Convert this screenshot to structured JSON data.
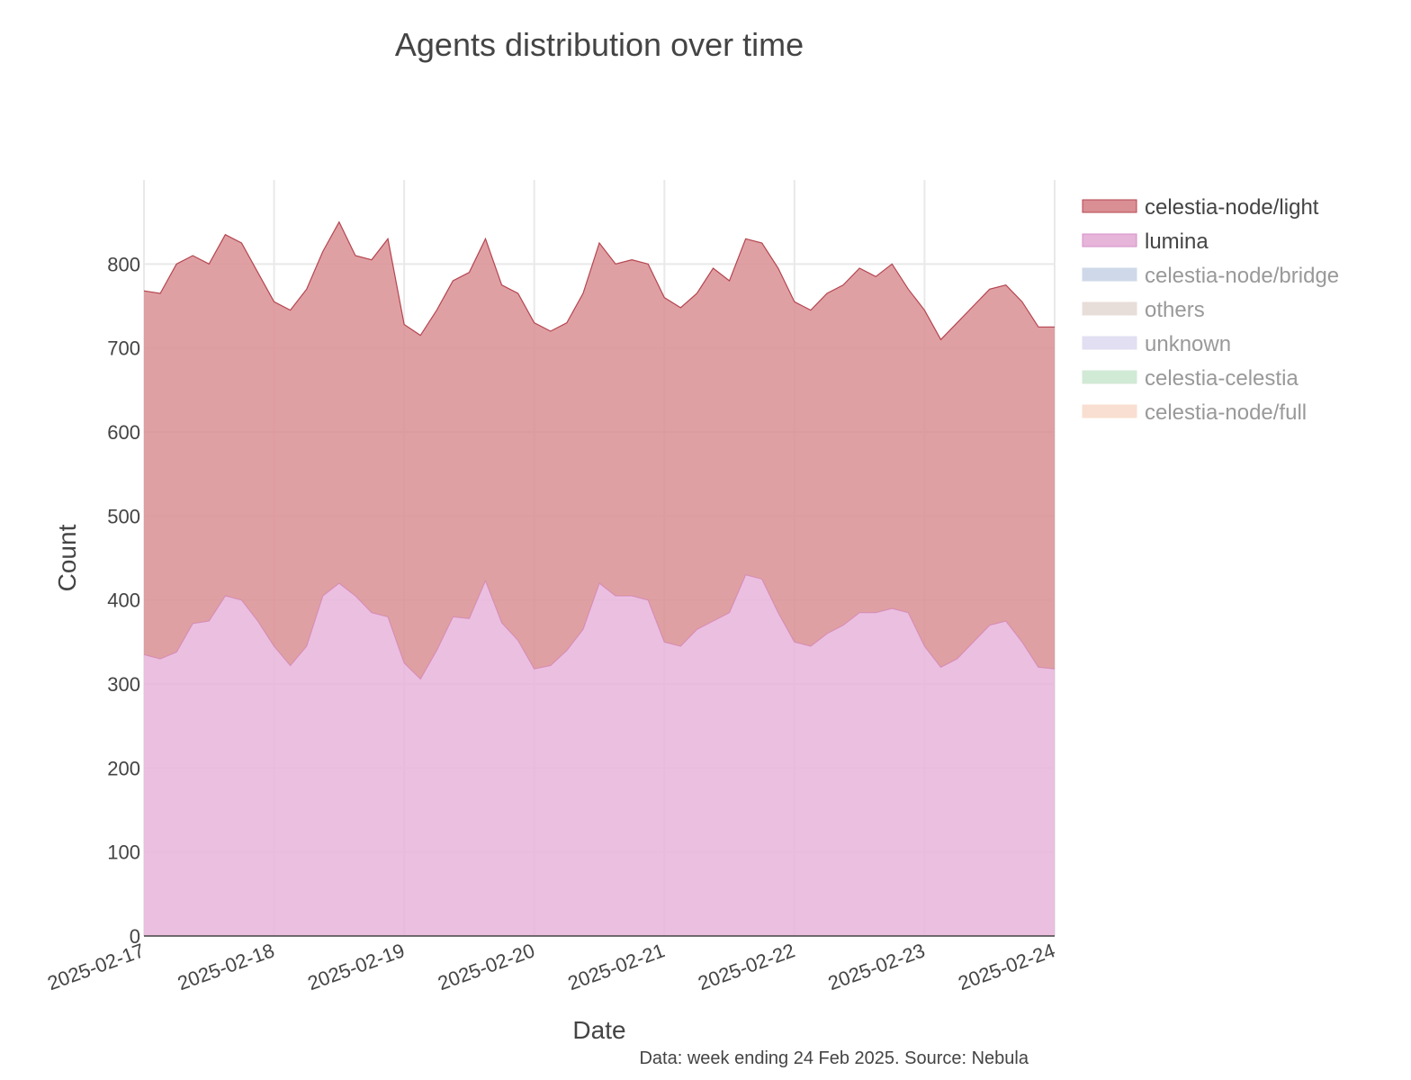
{
  "chart_data": {
    "type": "area",
    "stacked": true,
    "title": "Agents distribution over time",
    "xlabel": "Date",
    "ylabel": "Count",
    "xlim": [
      "2025-02-17",
      "2025-02-24"
    ],
    "ylim": [
      0,
      900
    ],
    "x_ticks": [
      "2025-02-17",
      "2025-02-18",
      "2025-02-19",
      "2025-02-20",
      "2025-02-21",
      "2025-02-22",
      "2025-02-23",
      "2025-02-24"
    ],
    "y_ticks": [
      "0",
      "100",
      "200",
      "300",
      "400",
      "500",
      "600",
      "700",
      "800"
    ],
    "grid": true,
    "legend_position": "top-right",
    "annotation": "Data: week ending 24 Feb 2025. Source: Nebula",
    "x": [
      "2025-02-17 00:00",
      "2025-02-17 03:00",
      "2025-02-17 06:00",
      "2025-02-17 09:00",
      "2025-02-17 12:00",
      "2025-02-17 15:00",
      "2025-02-17 18:00",
      "2025-02-17 21:00",
      "2025-02-18 00:00",
      "2025-02-18 03:00",
      "2025-02-18 06:00",
      "2025-02-18 09:00",
      "2025-02-18 12:00",
      "2025-02-18 15:00",
      "2025-02-18 18:00",
      "2025-02-18 21:00",
      "2025-02-19 00:00",
      "2025-02-19 03:00",
      "2025-02-19 06:00",
      "2025-02-19 09:00",
      "2025-02-19 12:00",
      "2025-02-19 15:00",
      "2025-02-19 18:00",
      "2025-02-19 21:00",
      "2025-02-20 00:00",
      "2025-02-20 03:00",
      "2025-02-20 06:00",
      "2025-02-20 09:00",
      "2025-02-20 12:00",
      "2025-02-20 15:00",
      "2025-02-20 18:00",
      "2025-02-20 21:00",
      "2025-02-21 00:00",
      "2025-02-21 03:00",
      "2025-02-21 06:00",
      "2025-02-21 09:00",
      "2025-02-21 12:00",
      "2025-02-21 15:00",
      "2025-02-21 18:00",
      "2025-02-21 21:00",
      "2025-02-22 00:00",
      "2025-02-22 03:00",
      "2025-02-22 06:00",
      "2025-02-22 09:00",
      "2025-02-22 12:00",
      "2025-02-22 15:00",
      "2025-02-22 18:00",
      "2025-02-22 21:00",
      "2025-02-23 00:00",
      "2025-02-23 03:00",
      "2025-02-23 06:00",
      "2025-02-23 09:00",
      "2025-02-23 12:00",
      "2025-02-23 15:00",
      "2025-02-23 18:00",
      "2025-02-23 21:00",
      "2025-02-24 00:00"
    ],
    "series": [
      {
        "name": "lumina",
        "color": "#e7b4da",
        "line_color": "#d68fc8",
        "visible": true,
        "values": [
          335,
          330,
          338,
          372,
          375,
          405,
          400,
          375,
          345,
          322,
          345,
          405,
          420,
          405,
          385,
          380,
          325,
          306,
          340,
          380,
          378,
          423,
          373,
          352,
          318,
          322,
          340,
          365,
          420,
          405,
          405,
          400,
          350,
          345,
          365,
          375,
          385,
          430,
          425,
          385,
          350,
          345,
          360,
          370,
          385,
          385,
          390,
          385,
          345,
          320,
          330,
          350,
          370,
          375,
          350,
          320,
          318
        ]
      },
      {
        "name": "celestia-node/light",
        "color": "#d98f94",
        "line_color": "#b5454f",
        "visible": true,
        "values": [
          768,
          765,
          800,
          810,
          800,
          835,
          825,
          790,
          755,
          745,
          770,
          815,
          850,
          810,
          805,
          830,
          728,
          715,
          745,
          780,
          790,
          830,
          775,
          765,
          730,
          720,
          730,
          765,
          825,
          800,
          805,
          800,
          760,
          748,
          765,
          795,
          780,
          830,
          825,
          795,
          755,
          745,
          765,
          775,
          795,
          785,
          800,
          770,
          745,
          710,
          730,
          750,
          770,
          775,
          755,
          725,
          725
        ]
      },
      {
        "name": "celestia-node/bridge",
        "color": "#c2cfe3",
        "visible": false
      },
      {
        "name": "others",
        "color": "#e3d6d0",
        "visible": false
      },
      {
        "name": "unknown",
        "color": "#dad8ee",
        "visible": false
      },
      {
        "name": "celestia-celestia",
        "color": "#c6e6cc",
        "visible": false
      },
      {
        "name": "celestia-node/full",
        "color": "#f8d8c6",
        "visible": false
      }
    ],
    "colors": {
      "text": "#444444",
      "legend_active": "#444444",
      "legend_inactive": "#999999",
      "grid": "#e9e9e9",
      "zero_line": "#444444"
    }
  }
}
